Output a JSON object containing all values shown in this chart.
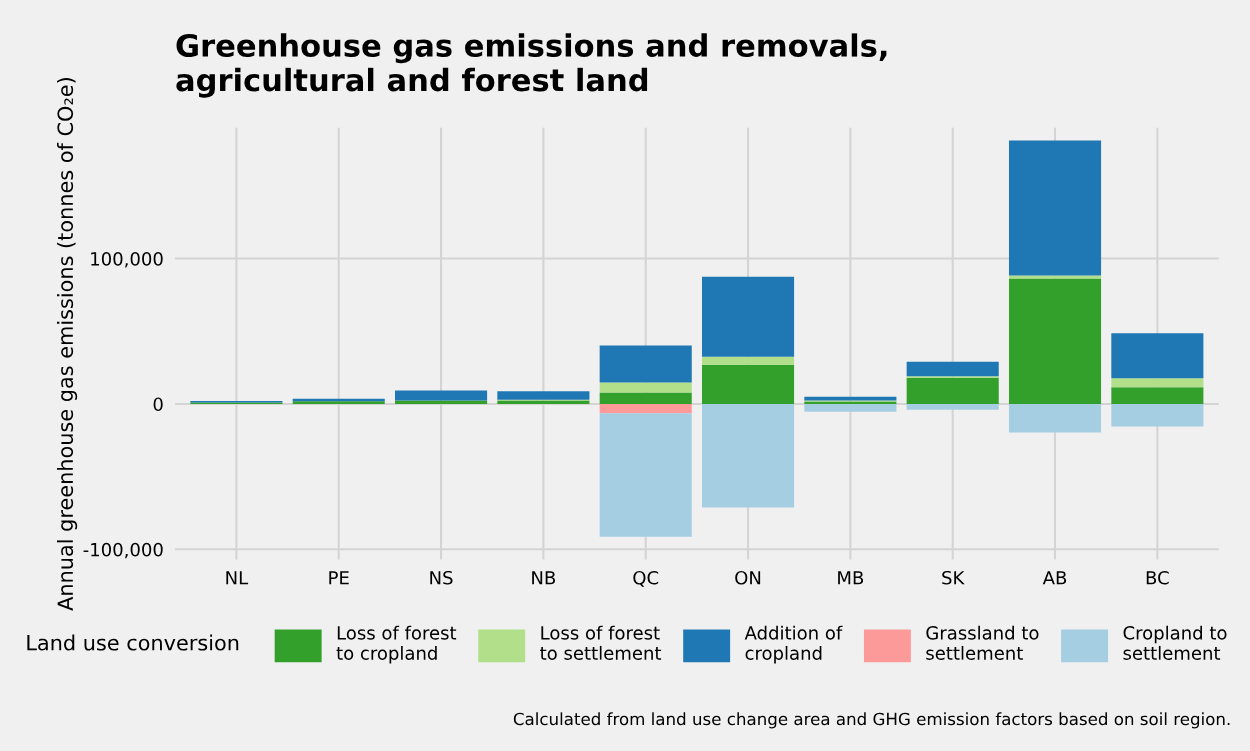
{
  "chart_data": {
    "type": "bar",
    "title": "Greenhouse gas emissions and removals,\nagricultural and forest land",
    "ylabel": "Annual greenhouse gas emissions (tonnes of CO₂e)",
    "legend_title": "Land use conversion",
    "categories": [
      "NL",
      "PE",
      "NS",
      "NB",
      "QC",
      "ON",
      "MB",
      "SK",
      "AB",
      "BC"
    ],
    "stacked": true,
    "series": [
      {
        "name": "Loss of forest\nto cropland",
        "color": "#33a02c",
        "values": [
          900,
          1800,
          2300,
          2300,
          7800,
          27000,
          1600,
          18000,
          86300,
          11400
        ]
      },
      {
        "name": "Loss of forest\nto settlement",
        "color": "#b2df8a",
        "values": [
          0,
          0,
          0,
          600,
          6900,
          5500,
          700,
          1000,
          2000,
          6200
        ]
      },
      {
        "name": "Addition of\ncropland",
        "color": "#1f78b4",
        "values": [
          1100,
          1800,
          6900,
          5900,
          25500,
          55000,
          2700,
          10000,
          92900,
          31000
        ]
      },
      {
        "name": "Grassland to\nsettlement",
        "color": "#fb9a99",
        "values": [
          0,
          0,
          0,
          0,
          -6500,
          0,
          0,
          0,
          0,
          0
        ]
      },
      {
        "name": "Cropland to\nsettlement",
        "color": "#a6cee3",
        "values": [
          0,
          0,
          0,
          0,
          -84800,
          -71300,
          -5300,
          -4000,
          -19600,
          -15500
        ]
      }
    ],
    "ylim": [
      -107000,
      190000
    ],
    "yticks": [
      {
        "value": -100000,
        "label": "-100,000"
      },
      0,
      {
        "value": 100000,
        "label": "100,000"
      }
    ],
    "grid": true,
    "legend": "bottom",
    "annotations": [
      "Calculated from land use change area and GHG emission factors based on soil region."
    ]
  }
}
